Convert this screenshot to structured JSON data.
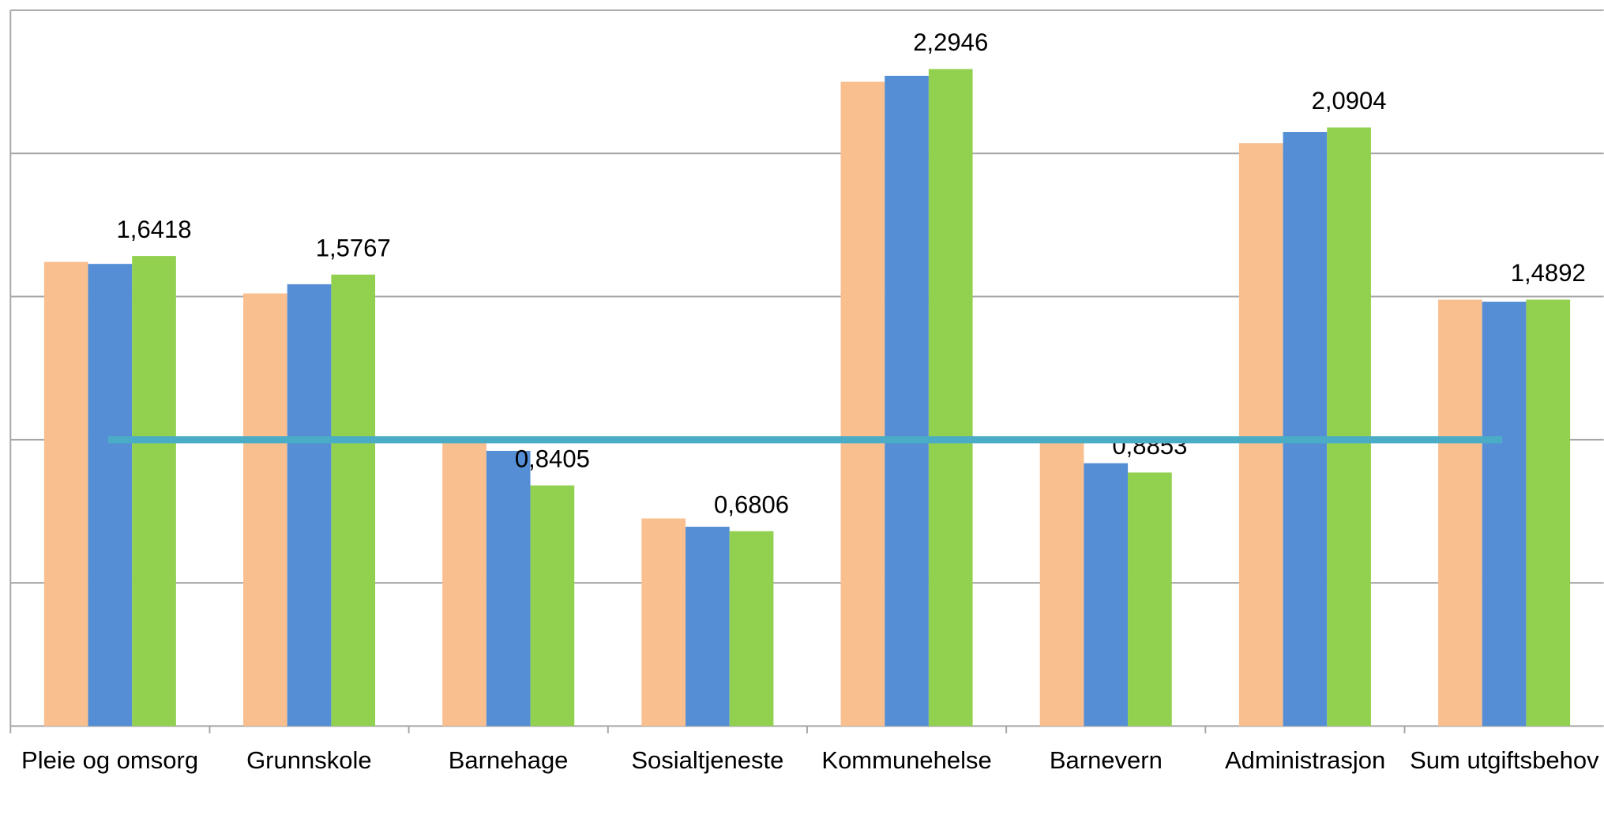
{
  "chart_data": {
    "type": "bar",
    "categories": [
      "Pleie og omsorg",
      "Grunnskole",
      "Barnehage",
      "Sosialtjeneste",
      "Kommunehelse",
      "Barnevern",
      "Administrasjon",
      "Sum utgiftsbehov"
    ],
    "series": [
      {
        "color": "#f9bf8f",
        "values": [
          1.621,
          1.511,
          1.007,
          0.725,
          2.25,
          1.0,
          2.036,
          1.489
        ]
      },
      {
        "color": "#558ed5",
        "values": [
          1.614,
          1.543,
          0.961,
          0.696,
          2.271,
          0.918,
          2.075,
          1.482
        ]
      },
      {
        "color": "#92d050",
        "values": [
          1.6418,
          1.5767,
          0.8405,
          0.6806,
          2.2946,
          0.8853,
          2.0904,
          1.4892
        ],
        "value_labels": [
          "1,6418",
          "1,5767",
          "0,8405",
          "0,6806",
          "2,2946",
          "0,8853",
          "2,0904",
          "1,4892"
        ]
      },
      {
        "type": "line",
        "color": "#4bacc6",
        "values": [
          1,
          1,
          1,
          1,
          1,
          1,
          1,
          1
        ]
      }
    ],
    "ylim": [
      0,
      2.5
    ],
    "yticks": [
      0,
      0.5,
      1,
      1.5,
      2,
      2.5
    ],
    "grid": true
  }
}
